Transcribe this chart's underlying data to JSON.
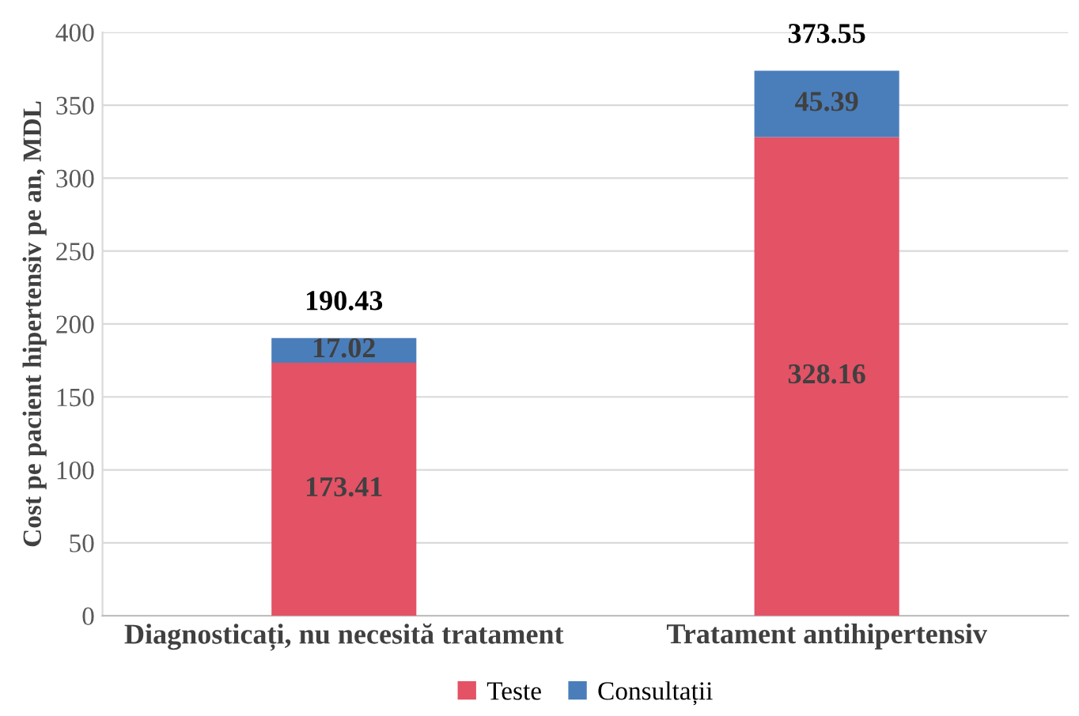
{
  "chart_data": {
    "type": "bar",
    "stacked": true,
    "ylabel": "Cost pe pacient hipertensiv pe an, MDL",
    "categories": [
      "Diagnosticați, nu necesită tratament",
      "Tratament antihipertensiv"
    ],
    "series": [
      {
        "name": "Teste",
        "color": "#e35265",
        "values": [
          173.41,
          328.16
        ]
      },
      {
        "name": "Consultații",
        "color": "#4a7ebb",
        "values": [
          17.02,
          45.39
        ]
      }
    ],
    "totals": [
      "190.43",
      "373.55"
    ],
    "data_labels": true,
    "ylim": [
      0,
      400
    ],
    "yticks": [
      0,
      50,
      100,
      150,
      200,
      250,
      300,
      350,
      400
    ],
    "grid": "y",
    "legend": "bottom"
  }
}
